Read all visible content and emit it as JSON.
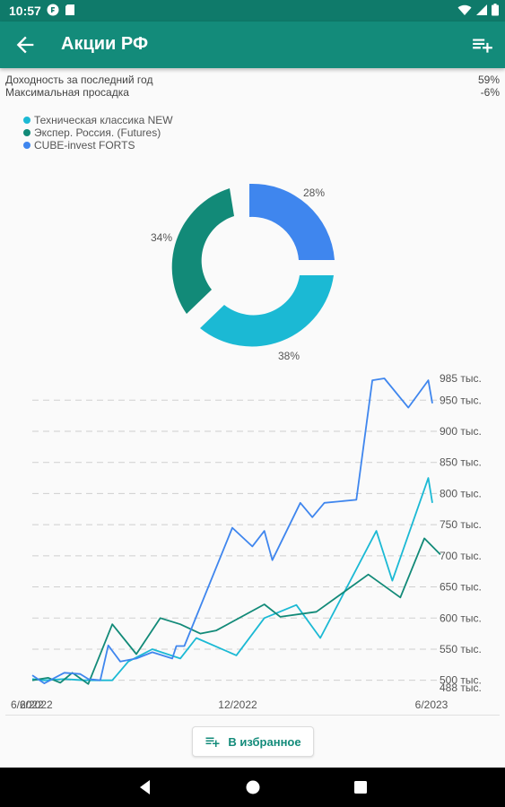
{
  "status_bar": {
    "time": "10:57"
  },
  "app_bar": {
    "title": "Акции РФ"
  },
  "stats": [
    {
      "label": "Доходность за последний год",
      "value": "59%"
    },
    {
      "label": "Максимальная просадка",
      "value": "-6%"
    }
  ],
  "legend": [
    {
      "name": "Техническая классика NEW",
      "color": "#1bb9d4"
    },
    {
      "name": "Экспер. Россия. (Futures)",
      "color": "#128a78"
    },
    {
      "name": "CUBE-invest FORTS",
      "color": "#3f86ee"
    }
  ],
  "pie_labels": {
    "blue": "28%",
    "cyan": "38%",
    "green": "34%"
  },
  "chart_data": [
    {
      "type": "pie",
      "series": [
        {
          "name": "CUBE-invest FORTS",
          "values": [
            28
          ]
        },
        {
          "name": "Техническая классика NEW",
          "values": [
            38
          ]
        },
        {
          "name": "Экспер. Россия. (Futures)",
          "values": [
            34
          ]
        }
      ]
    },
    {
      "type": "line",
      "x_tick_labels": [
        "6/2022",
        "12/2022",
        "6/2023"
      ],
      "y_tick_labels": [
        "488 тыс.",
        "500 тыс.",
        "550 тыс.",
        "600 тыс.",
        "650 тыс.",
        "700 тыс.",
        "750 тыс.",
        "800 тыс.",
        "850 тыс.",
        "900 тыс.",
        "950 тыс.",
        "985 тыс."
      ],
      "ylim": [
        488,
        985
      ],
      "x_range": [
        2022.5,
        2023.5
      ],
      "grid": true,
      "series": [
        {
          "name": "Техническая классика NEW",
          "color": "#1bb9d4",
          "x": [
            2022.5,
            2022.53,
            2022.58,
            2022.63,
            2022.7,
            2022.74,
            2022.8,
            2022.87,
            2022.91,
            2023.01,
            2023.08,
            2023.16,
            2023.22,
            2023.36,
            2023.4,
            2023.49,
            2023.5
          ],
          "y": [
            502,
            500,
            502,
            500,
            500,
            530,
            550,
            535,
            568,
            540,
            600,
            621,
            568,
            740,
            660,
            825,
            785
          ]
        },
        {
          "name": "Экспер. Россия. (Futures)",
          "color": "#128a78",
          "x": [
            2022.5,
            2022.54,
            2022.57,
            2022.6,
            2022.64,
            2022.7,
            2022.76,
            2022.82,
            2022.87,
            2022.92,
            2022.96,
            2023.08,
            2023.12,
            2023.21,
            2023.34,
            2023.42,
            2023.48,
            2023.52
          ],
          "y": [
            500,
            504,
            496,
            512,
            494,
            590,
            542,
            600,
            590,
            575,
            580,
            622,
            602,
            610,
            670,
            633,
            728,
            702
          ]
        },
        {
          "name": "CUBE-invest FORTS",
          "color": "#3f86ee",
          "x": [
            2022.5,
            2022.53,
            2022.58,
            2022.62,
            2022.64,
            2022.67,
            2022.69,
            2022.72,
            2022.76,
            2022.8,
            2022.85,
            2022.86,
            2022.88,
            2023.0,
            2023.05,
            2023.08,
            2023.1,
            2023.17,
            2023.2,
            2023.23,
            2023.31,
            2023.35,
            2023.38,
            2023.44,
            2023.49,
            2023.5
          ],
          "y": [
            508,
            495,
            512,
            510,
            502,
            500,
            556,
            530,
            535,
            545,
            535,
            555,
            555,
            745,
            715,
            740,
            693,
            785,
            762,
            785,
            790,
            982,
            985,
            938,
            982,
            945
          ]
        }
      ]
    }
  ],
  "favorite_button": {
    "label": "В избранное"
  }
}
